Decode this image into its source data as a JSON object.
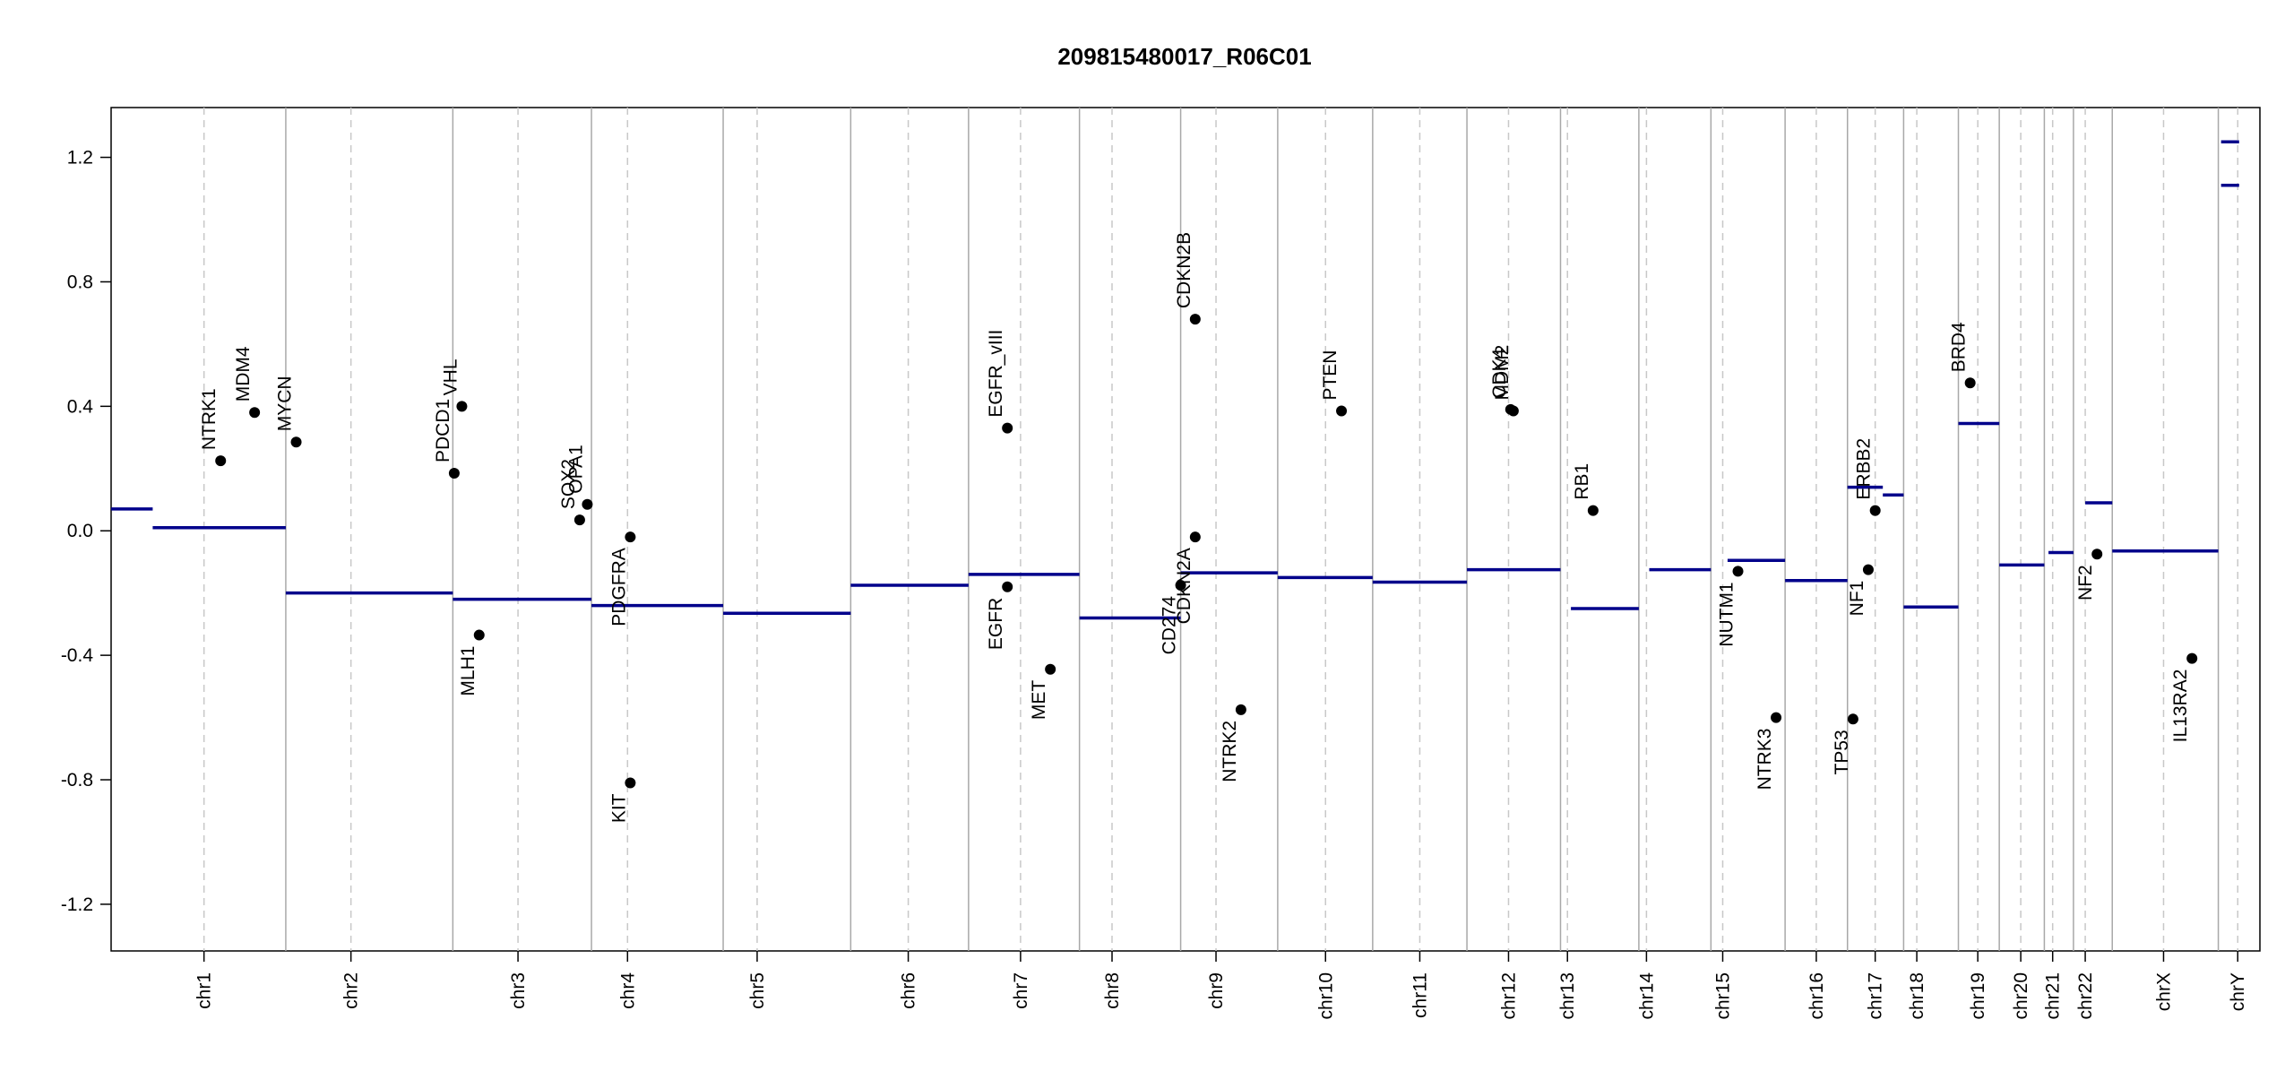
{
  "chart_data": {
    "type": "copy_number",
    "title": "209815480017_R06C01",
    "xlim": [
      0,
      3100
    ],
    "ylim": [
      -1.35,
      1.36
    ],
    "yticks": [
      -1.2,
      -0.8,
      -0.4,
      {
        "value": 0,
        "label": "0.0"
      },
      0.4,
      0.8,
      1.2
    ],
    "categories": [
      "chr1",
      "chr2",
      "chr3",
      "chr4",
      "chr5",
      "chr6",
      "chr7",
      "chr8",
      "chr9",
      "chr10",
      "chr11",
      "chr12",
      "chr13",
      "chr14",
      "chr15",
      "chr16",
      "chr17",
      "chr18",
      "chr19",
      "chr20",
      "chr21",
      "chr22",
      "chrX",
      "chrY"
    ],
    "centromeres": [
      134,
      346,
      587,
      745,
      932,
      1150,
      1312,
      1444,
      1594,
      1752,
      1888,
      2016,
      2101,
      2215,
      2325,
      2460,
      2545,
      2605,
      2693,
      2755,
      2801,
      2848,
      2961,
      3068
    ],
    "boundaries": [
      252,
      493,
      693,
      883,
      1067,
      1237,
      1397,
      1543,
      1683,
      1820,
      1956,
      2091,
      2204,
      2308,
      2415,
      2505,
      2586,
      2665,
      2724,
      2789,
      2831,
      2887,
      3040
    ],
    "segments": {
      "color": "#00008b",
      "start": [
        0,
        60,
        252,
        493,
        693,
        883,
        1067,
        1237,
        1397,
        1543,
        1683,
        1820,
        1956,
        2106,
        2219,
        2332,
        2415,
        2505,
        2556,
        2586,
        2665,
        2724,
        2795,
        2848,
        2887,
        3044,
        3044
      ],
      "end": [
        60,
        252,
        493,
        693,
        883,
        1067,
        1237,
        1397,
        1543,
        1683,
        1820,
        1956,
        2091,
        2204,
        2308,
        2415,
        2505,
        2556,
        2586,
        2665,
        2724,
        2789,
        2831,
        2887,
        3040,
        3070,
        3070
      ],
      "values": [
        0.07,
        0.01,
        -0.2,
        -0.22,
        -0.24,
        -0.265,
        -0.175,
        -0.14,
        -0.28,
        -0.135,
        -0.15,
        -0.165,
        -0.125,
        -0.25,
        -0.125,
        -0.095,
        -0.16,
        0.14,
        0.115,
        -0.245,
        0.345,
        -0.11,
        -0.07,
        0.09,
        -0.065,
        1.25,
        1.11
      ]
    },
    "genes": {
      "color": "#000000",
      "labels": [
        "NTRK1",
        "MDM4",
        "MYCN",
        "PDCD1",
        "VHL",
        "MLH1",
        "SOX2",
        "OPA1",
        "PDGFRA",
        "KIT",
        "EGFR_vIII",
        "EGFR",
        "MET",
        "CD274",
        "CDKN2B",
        "CDKN2A",
        "NTRK2",
        "PTEN",
        "CDK4",
        "MDM2",
        "RB1",
        "NUTM1",
        "NTRK3",
        "TP53",
        "NF1",
        "ERBB2",
        "BRD4",
        "NF2",
        "IL13RA2"
      ],
      "x": [
        158,
        207,
        267,
        495,
        506,
        531,
        676,
        687,
        749,
        749,
        1293,
        1293,
        1355,
        1543,
        1564,
        1564,
        1630,
        1775,
        2019,
        2023,
        2138,
        2347,
        2402,
        2513,
        2535,
        2545,
        2682,
        2865,
        3002
      ],
      "values": [
        0.225,
        0.38,
        0.285,
        0.185,
        0.4,
        -0.335,
        0.035,
        0.085,
        -0.02,
        -0.81,
        0.33,
        -0.18,
        -0.445,
        -0.175,
        0.68,
        -0.02,
        -0.575,
        0.385,
        0.39,
        0.385,
        0.065,
        -0.13,
        -0.6,
        -0.605,
        -0.125,
        0.065,
        0.475,
        -0.075,
        -0.41
      ]
    }
  }
}
